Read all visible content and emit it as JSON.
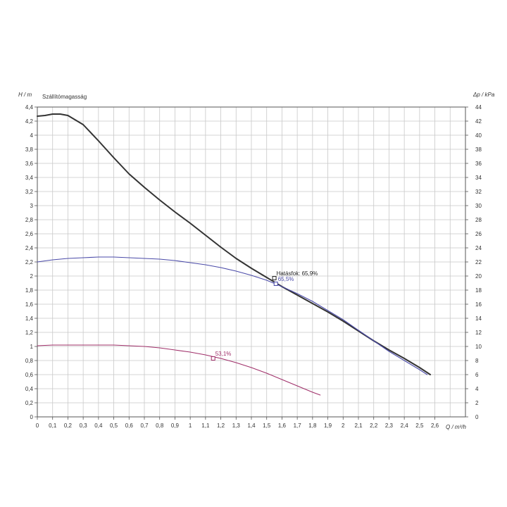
{
  "chart_data": {
    "type": "line",
    "title": "",
    "subtitle": "Szállítómagasság",
    "xlabel": "Q / m³/h",
    "ylabel": "H / m",
    "y2label": "Δp / kPa",
    "xlim": [
      0,
      2.8
    ],
    "ylim": [
      0,
      4.4
    ],
    "y2lim": [
      0,
      44
    ],
    "grid": true,
    "x_ticks": [
      "0",
      "0,1",
      "0,2",
      "0,3",
      "0,4",
      "0,5",
      "0,6",
      "0,7",
      "0,8",
      "0,9",
      "1",
      "1,1",
      "1,2",
      "1,3",
      "1,4",
      "1,5",
      "1,6",
      "1,7",
      "1,8",
      "1,9",
      "2",
      "2,1",
      "2,2",
      "2,3",
      "2,4",
      "2,5",
      "2,6"
    ],
    "y_ticks": [
      "0",
      "0,2",
      "0,4",
      "0,6",
      "0,8",
      "1",
      "1,2",
      "1,4",
      "1,6",
      "1,8",
      "2",
      "2,2",
      "2,4",
      "2,6",
      "2,8",
      "3",
      "3,2",
      "3,4",
      "3,6",
      "3,8",
      "4",
      "4,2",
      "4,4"
    ],
    "y2_ticks": [
      "0",
      "2",
      "4",
      "6",
      "8",
      "10",
      "12",
      "14",
      "16",
      "18",
      "20",
      "22",
      "24",
      "26",
      "28",
      "30",
      "32",
      "34",
      "36",
      "38",
      "40",
      "42",
      "44"
    ],
    "series": [
      {
        "color": "#333333",
        "x": [
          0,
          0.05,
          0.1,
          0.15,
          0.2,
          0.3,
          0.4,
          0.5,
          0.6,
          0.7,
          0.8,
          0.9,
          1.0,
          1.1,
          1.2,
          1.3,
          1.4,
          1.5,
          1.6,
          1.7,
          1.8,
          1.9,
          2.0,
          2.1,
          2.2,
          2.3,
          2.4,
          2.5,
          2.57
        ],
        "y": [
          4.27,
          4.28,
          4.3,
          4.3,
          4.28,
          4.15,
          3.92,
          3.68,
          3.45,
          3.26,
          3.08,
          2.91,
          2.75,
          2.58,
          2.41,
          2.25,
          2.11,
          1.98,
          1.85,
          1.73,
          1.61,
          1.49,
          1.36,
          1.22,
          1.08,
          0.95,
          0.83,
          0.7,
          0.6
        ]
      },
      {
        "color": "#4a4aa8",
        "x": [
          0,
          0.1,
          0.2,
          0.3,
          0.4,
          0.5,
          0.6,
          0.7,
          0.8,
          0.9,
          1.0,
          1.1,
          1.2,
          1.3,
          1.4,
          1.5,
          1.6,
          1.7,
          1.8,
          1.9,
          2.0,
          2.1,
          2.2,
          2.3,
          2.4,
          2.5,
          2.55
        ],
        "y": [
          2.2,
          2.23,
          2.25,
          2.26,
          2.27,
          2.27,
          2.26,
          2.25,
          2.24,
          2.22,
          2.19,
          2.16,
          2.12,
          2.07,
          2.01,
          1.94,
          1.85,
          1.75,
          1.64,
          1.51,
          1.38,
          1.23,
          1.08,
          0.93,
          0.8,
          0.67,
          0.6
        ]
      },
      {
        "color": "#a0306a",
        "x": [
          0,
          0.1,
          0.2,
          0.3,
          0.4,
          0.5,
          0.6,
          0.7,
          0.8,
          0.9,
          1.0,
          1.1,
          1.2,
          1.3,
          1.4,
          1.5,
          1.6,
          1.7,
          1.8,
          1.85
        ],
        "y": [
          1.01,
          1.02,
          1.02,
          1.02,
          1.02,
          1.02,
          1.01,
          1.0,
          0.98,
          0.95,
          0.92,
          0.88,
          0.83,
          0.77,
          0.7,
          0.62,
          0.53,
          0.44,
          0.35,
          0.31
        ]
      }
    ],
    "annotations": [
      {
        "text": "Hatásfok: 65,9%",
        "x": 1.55,
        "y": 1.97,
        "color": "#222222"
      },
      {
        "text": "65,5%",
        "x": 1.56,
        "y": 1.89,
        "color": "#4a4aa8"
      },
      {
        "text": "53,1%",
        "x": 1.15,
        "y": 0.83,
        "color": "#a0306a"
      }
    ]
  }
}
